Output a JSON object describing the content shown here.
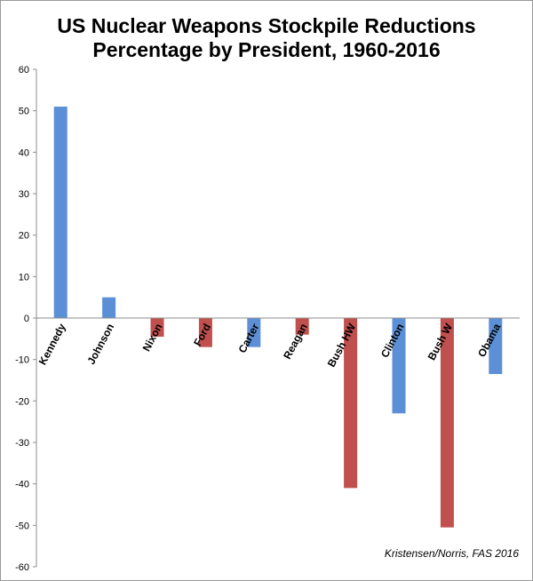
{
  "chart_data": {
    "type": "bar",
    "title": "US Nuclear Weapons Stockpile Reductions",
    "subtitle": "Percentage by President, 1960-2016",
    "categories": [
      "Kennedy",
      "Johnson",
      "Nixon",
      "Ford",
      "Carter",
      "Reagan",
      "Bush HW",
      "Clinton",
      "Bush W",
      "Obama"
    ],
    "values": [
      51,
      5,
      -4.5,
      -7,
      -7,
      -4,
      -41,
      -23,
      -50.5,
      -13.5
    ],
    "party": [
      "D",
      "D",
      "R",
      "R",
      "D",
      "R",
      "R",
      "D",
      "R",
      "D"
    ],
    "colors": {
      "D": "#5b8fd6",
      "R": "#c0504d"
    },
    "yticks": [
      60,
      50,
      40,
      30,
      20,
      10,
      0,
      -10,
      -20,
      -30,
      -40,
      -50,
      -60
    ],
    "ylim": [
      -60,
      60
    ],
    "grid": false,
    "legend": "none"
  },
  "credit": "Kristensen/Norris, FAS 2016"
}
